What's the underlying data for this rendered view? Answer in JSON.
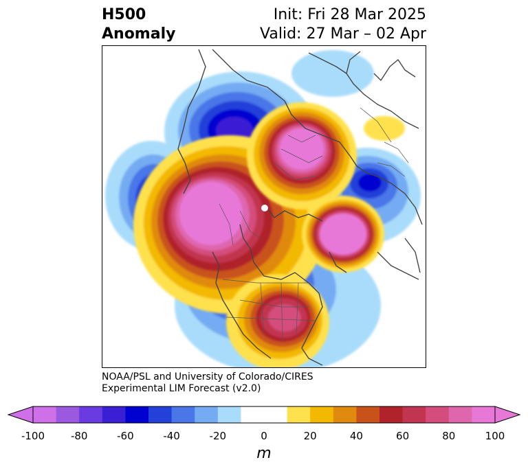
{
  "header": {
    "title_line1": "H500",
    "title_line2": "Anomaly",
    "init": "Init: Fri 28 Mar 2025",
    "valid": "Valid: 27 Mar – 02 Apr"
  },
  "credit": {
    "line1": "NOAA/PSL and University of Colorado/CIRES",
    "line2": "Experimental LIM Forecast (v2.0)"
  },
  "colorbar": {
    "unit": "m",
    "min": -100,
    "max": 100,
    "tick_labels": [
      "-100",
      "-80",
      "-60",
      "-40",
      "-20",
      "0",
      "20",
      "40",
      "60",
      "80",
      "100"
    ],
    "extend": "both",
    "colors": [
      "#d070e8",
      "#9b59e0",
      "#6a3be0",
      "#3a1fd4",
      "#0000d0",
      "#2341d9",
      "#4a76e8",
      "#74abf2",
      "#a9dcfb",
      "#ffffff",
      "#ffffff",
      "#ffe14d",
      "#f3b800",
      "#e08a0f",
      "#c9521a",
      "#b0232a",
      "#c23550",
      "#d44d7c",
      "#de66ad",
      "#e878d8"
    ]
  },
  "map_features": {
    "projection": "north-polar stereographic",
    "colors": {
      "coast": "#444444",
      "border": "#555555"
    }
  }
}
